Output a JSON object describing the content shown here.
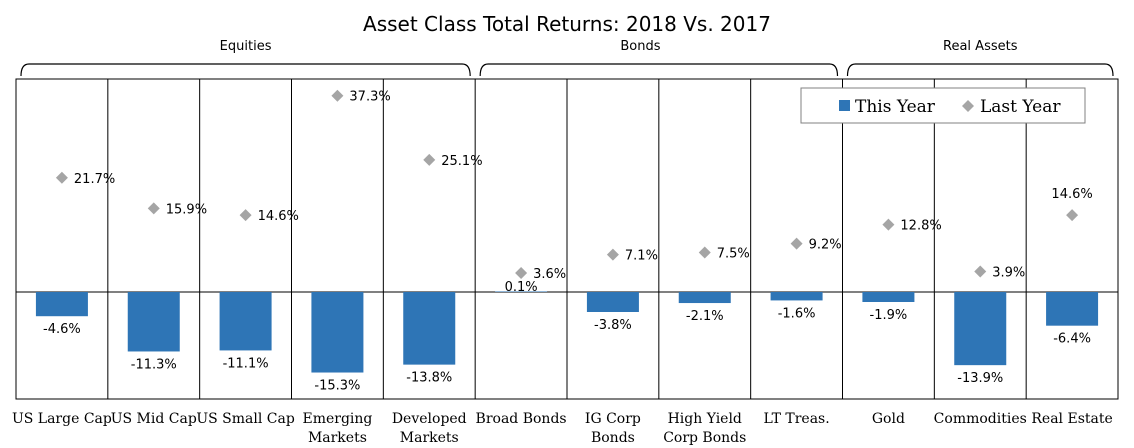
{
  "chart_data": {
    "type": "bar",
    "title": "Asset Class Total Returns: 2018 Vs. 2017",
    "groups": [
      {
        "label": "Equities",
        "categories": [
          "US Large Cap",
          "US Mid Cap",
          "US Small Cap",
          "Emerging Markets",
          "Developed Markets"
        ]
      },
      {
        "label": "Bonds",
        "categories": [
          "Broad Bonds",
          "IG Corp Bonds",
          "High Yield Corp Bonds",
          "LT Treas."
        ]
      },
      {
        "label": "Real Assets",
        "categories": [
          "Gold",
          "Commodities",
          "Real Estate"
        ]
      }
    ],
    "categories": [
      [
        "US Large Cap"
      ],
      [
        "US Mid Cap"
      ],
      [
        "US Small Cap"
      ],
      [
        "Emerging",
        "Markets"
      ],
      [
        "Developed",
        "Markets"
      ],
      [
        "Broad Bonds"
      ],
      [
        "IG Corp",
        "Bonds"
      ],
      [
        "High Yield",
        "Corp Bonds"
      ],
      [
        "LT Treas."
      ],
      [
        "Gold"
      ],
      [
        "Commodities"
      ],
      [
        "Real Estate"
      ]
    ],
    "series": [
      {
        "name": "This Year",
        "type": "bar",
        "color": "#2e75b6",
        "values": [
          -4.6,
          -11.3,
          -11.1,
          -15.3,
          -13.8,
          0.1,
          -3.8,
          -2.1,
          -1.6,
          -1.9,
          -13.9,
          -6.4
        ],
        "labels": [
          "-4.6%",
          "-11.3%",
          "-11.1%",
          "-15.3%",
          "-13.8%",
          "0.1%",
          "-3.8%",
          "-2.1%",
          "-1.6%",
          "-1.9%",
          "-13.9%",
          "-6.4%"
        ]
      },
      {
        "name": "Last Year",
        "type": "scatter",
        "marker": "diamond",
        "color": "#a5a5a5",
        "values": [
          21.7,
          15.9,
          14.6,
          37.3,
          25.1,
          3.6,
          7.1,
          7.5,
          9.2,
          12.8,
          3.9,
          14.6
        ],
        "labels": [
          "21.7%",
          "15.9%",
          "14.6%",
          "37.3%",
          "25.1%",
          "3.6%",
          "7.1%",
          "7.5%",
          "9.2%",
          "12.8%",
          "3.9%",
          "14.6%"
        ]
      }
    ],
    "ylim": [
      -20,
      42
    ],
    "legend": "top-right",
    "grid": false
  }
}
